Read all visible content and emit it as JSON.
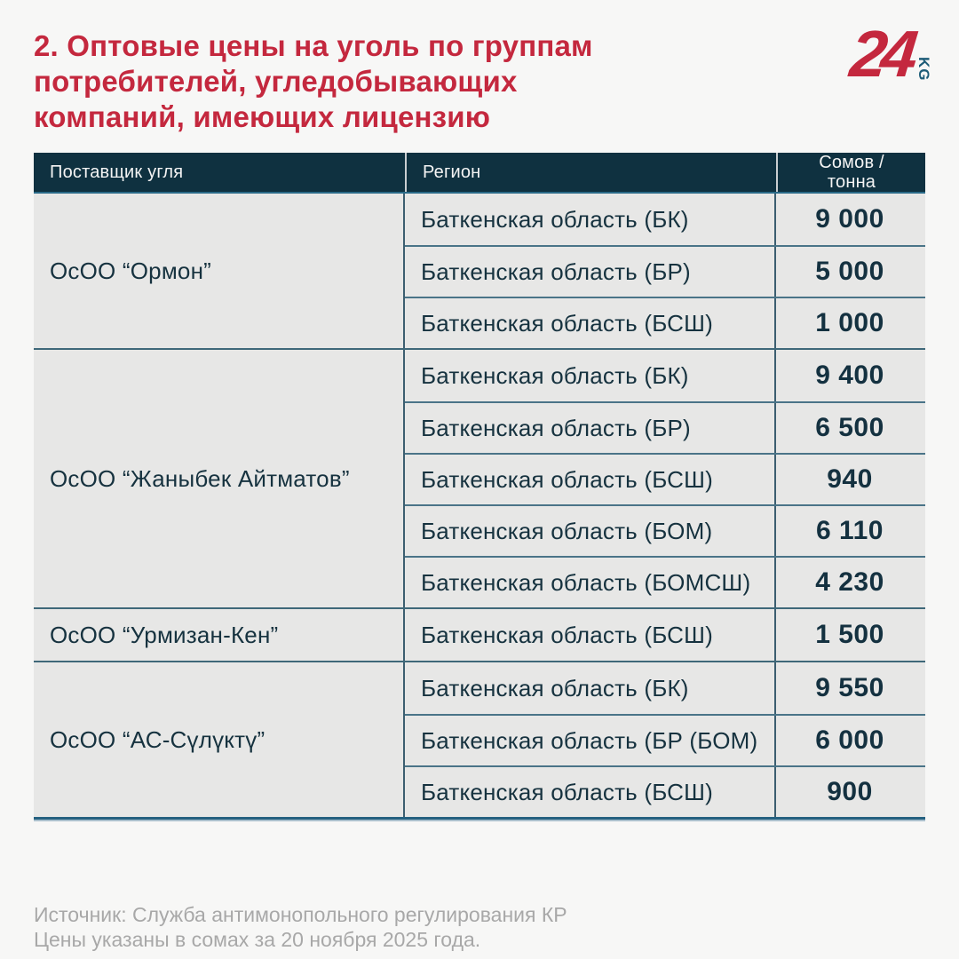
{
  "title": {
    "lines": [
      "2. Оптовые цены на уголь по группам",
      "потребителей, угледобывающих",
      "компаний, имеющих лицензию"
    ]
  },
  "logo": {
    "number": "24",
    "suffix": "KG"
  },
  "colors": {
    "accent_red": "#c4283e",
    "header_bg": "#0f3140",
    "cell_bg": "#e7e7e6",
    "text_dark": "#16323f",
    "divider_blue": "#4a7488",
    "footer_gray": "#a8a8a8"
  },
  "table": {
    "columns": [
      "Поставщик угля",
      "Регион",
      "Сомов / тонна"
    ],
    "groups": [
      {
        "supplier": "ОсОО “Ормон”",
        "rows": [
          {
            "region": "Баткенская область (БК)",
            "price": "9 000"
          },
          {
            "region": "Баткенская область (БР)",
            "price": "5 000"
          },
          {
            "region": "Баткенская область (БСШ)",
            "price": "1 000"
          }
        ]
      },
      {
        "supplier": "ОсОО “Жаныбек Айтматов”",
        "rows": [
          {
            "region": "Баткенская область (БК)",
            "price": "9 400"
          },
          {
            "region": "Баткенская область (БР)",
            "price": "6 500"
          },
          {
            "region": "Баткенская область (БСШ)",
            "price": "940"
          },
          {
            "region": "Баткенская область (БОМ)",
            "price": "6 110"
          },
          {
            "region": "Баткенская область (БОМСШ)",
            "price": "4 230"
          }
        ]
      },
      {
        "supplier": "ОсОО “Урмизан-Кен”",
        "rows": [
          {
            "region": "Баткенская область (БСШ)",
            "price": "1 500"
          }
        ]
      },
      {
        "supplier": "ОсОО “АС-Сүлүктү”",
        "rows": [
          {
            "region": "Баткенская область (БК)",
            "price": "9 550"
          },
          {
            "region": "Баткенская область (БР (БОМ)",
            "price": "6 000"
          },
          {
            "region": "Баткенская область (БСШ)",
            "price": "900"
          }
        ]
      }
    ]
  },
  "footer": {
    "line1": "Источник: Служба антимонопольного регулирования КР",
    "line2": "Цены указаны в сомах за 20 ноября 2025 года."
  },
  "chart_data": {
    "type": "table",
    "title": "2. Оптовые цены на уголь по группам потребителей, угледобывающих компаний, имеющих лицензию",
    "columns": [
      "Поставщик угля",
      "Регион",
      "Сомов / тонна"
    ],
    "rows": [
      [
        "ОсОО “Ормон”",
        "Баткенская область (БК)",
        9000
      ],
      [
        "ОсОО “Ормон”",
        "Баткенская область (БР)",
        5000
      ],
      [
        "ОсОО “Ормон”",
        "Баткенская область (БСШ)",
        1000
      ],
      [
        "ОсОО “Жаныбек Айтматов”",
        "Баткенская область (БК)",
        9400
      ],
      [
        "ОсОО “Жаныбек Айтматов”",
        "Баткенская область (БР)",
        6500
      ],
      [
        "ОсОО “Жаныбек Айтматов”",
        "Баткенская область (БСШ)",
        940
      ],
      [
        "ОсОО “Жаныбек Айтматов”",
        "Баткенская область (БОМ)",
        6110
      ],
      [
        "ОсОО “Жаныбек Айтматов”",
        "Баткенская область (БОМСШ)",
        4230
      ],
      [
        "ОсОО “Урмизан-Кен”",
        "Баткенская область (БСШ)",
        1500
      ],
      [
        "ОсОО “АС-Сүлүктү”",
        "Баткенская область (БК)",
        9550
      ],
      [
        "ОсОО “АС-Сүлүктү”",
        "Баткенская область (БР (БОМ)",
        6000
      ],
      [
        "ОсОО “АС-Сүлүктү”",
        "Баткенская область (БСШ)",
        900
      ]
    ],
    "source": "Источник: Служба антимонопольного регулирования КР",
    "note": "Цены указаны в сомах за 20 ноября 2025 года."
  }
}
